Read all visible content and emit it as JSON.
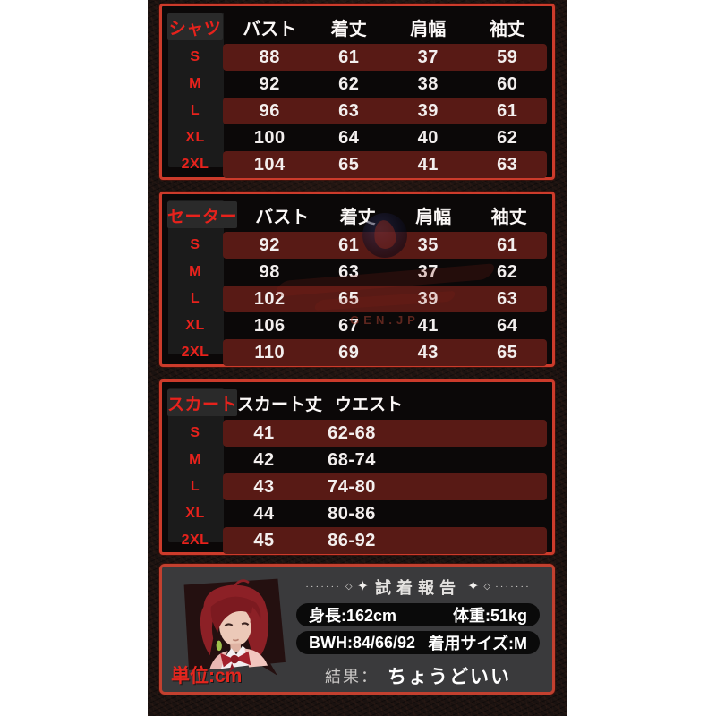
{
  "colors": {
    "page_bg": "#ffffff",
    "strip_bg": "#1a1210",
    "table_border_red": "#cc3b2b",
    "row_stripe_maroon": "#581a15",
    "size_label_red": "#e7221c",
    "panel_bg": "#3a3a3c",
    "pill_bg": "#0a0a0a",
    "text_white": "#f3efee"
  },
  "tables": [
    {
      "name": "シャツ",
      "columns": [
        "バスト",
        "着丈",
        "肩幅",
        "袖丈"
      ],
      "rows": [
        {
          "size": "S",
          "values": [
            "88",
            "61",
            "37",
            "59"
          ]
        },
        {
          "size": "M",
          "values": [
            "92",
            "62",
            "38",
            "60"
          ]
        },
        {
          "size": "L",
          "values": [
            "96",
            "63",
            "39",
            "61"
          ]
        },
        {
          "size": "XL",
          "values": [
            "100",
            "64",
            "40",
            "62"
          ]
        },
        {
          "size": "2XL",
          "values": [
            "104",
            "65",
            "41",
            "63"
          ]
        }
      ]
    },
    {
      "name": "セーター",
      "columns": [
        "バスト",
        "着丈",
        "肩幅",
        "袖丈"
      ],
      "rows": [
        {
          "size": "S",
          "values": [
            "92",
            "61",
            "35",
            "61"
          ]
        },
        {
          "size": "M",
          "values": [
            "98",
            "63",
            "37",
            "62"
          ]
        },
        {
          "size": "L",
          "values": [
            "102",
            "65",
            "39",
            "63"
          ]
        },
        {
          "size": "XL",
          "values": [
            "106",
            "67",
            "41",
            "64"
          ]
        },
        {
          "size": "2XL",
          "values": [
            "110",
            "69",
            "43",
            "65"
          ]
        }
      ]
    },
    {
      "name": "スカート",
      "columns": [
        "スカート丈",
        "ウエスト"
      ],
      "rows": [
        {
          "size": "S",
          "values": [
            "41",
            "62-68"
          ]
        },
        {
          "size": "M",
          "values": [
            "42",
            "68-74"
          ]
        },
        {
          "size": "L",
          "values": [
            "43",
            "74-80"
          ]
        },
        {
          "size": "XL",
          "values": [
            "44",
            "80-86"
          ]
        },
        {
          "size": "2XL",
          "values": [
            "45",
            "86-92"
          ]
        }
      ]
    }
  ],
  "watermark": {
    "text": "GEN.JP"
  },
  "report": {
    "title": "試着報告",
    "deco": {
      "dots": "·······",
      "diamond": "◇",
      "star": "✦"
    },
    "pill1_left": "身長:162cm",
    "pill1_right": "体重:51kg",
    "pill2_left": "BWH:84/66/92",
    "pill2_right": "着用サイズ:M",
    "result_label": "結果：",
    "result_value": "ちょうどいい",
    "unit": "単位:cm"
  }
}
